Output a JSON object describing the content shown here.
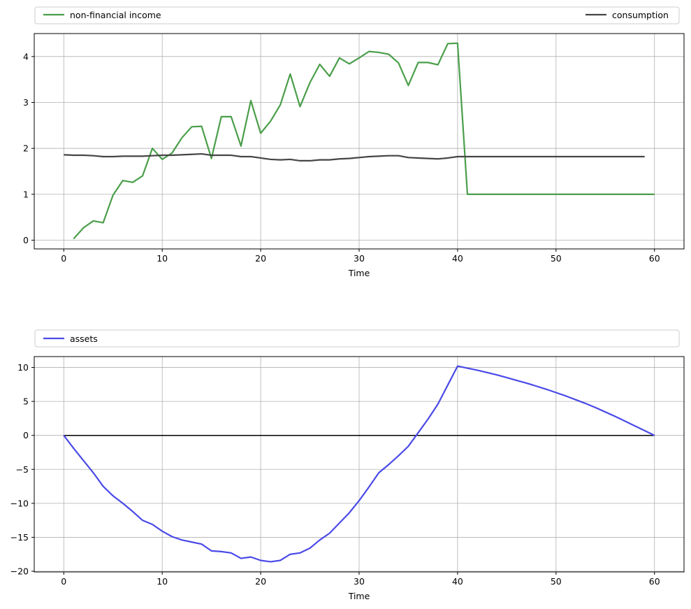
{
  "chart_data": [
    {
      "type": "line",
      "xlabel": "Time",
      "ylabel": "",
      "xlim": [
        -3,
        63
      ],
      "ylim": [
        -0.19,
        4.5
      ],
      "xticks": [
        0,
        10,
        20,
        30,
        40,
        50,
        60
      ],
      "yticks": [
        0,
        1,
        2,
        3,
        4
      ],
      "xtick_labels": [
        "0",
        "10",
        "20",
        "30",
        "40",
        "50",
        "60"
      ],
      "ytick_labels": [
        "0",
        "1",
        "2",
        "3",
        "4"
      ],
      "grid": true,
      "legend_placement": "above, expanded across the top",
      "legend": [
        "non-financial income",
        "consumption"
      ],
      "series": [
        {
          "name": "non-financial income",
          "color": "#4a9e4a",
          "x": [
            1,
            2,
            3,
            4,
            5,
            6,
            7,
            8,
            9,
            10,
            11,
            12,
            13,
            14,
            15,
            16,
            17,
            18,
            19,
            20,
            21,
            22,
            23,
            24,
            25,
            26,
            27,
            28,
            29,
            30,
            31,
            32,
            33,
            34,
            35,
            36,
            37,
            38,
            39,
            40,
            41,
            42,
            43,
            44,
            45,
            46,
            47,
            48,
            49,
            50,
            51,
            52,
            53,
            54,
            55,
            56,
            57,
            58,
            59,
            60
          ],
          "values": [
            0.03,
            0.27,
            0.42,
            0.38,
            0.98,
            1.3,
            1.26,
            1.4,
            2.0,
            1.76,
            1.9,
            2.23,
            2.47,
            2.48,
            1.78,
            2.69,
            2.69,
            2.05,
            3.04,
            2.33,
            2.59,
            2.95,
            3.62,
            2.91,
            3.43,
            3.83,
            3.57,
            3.97,
            3.84,
            3.97,
            4.11,
            4.09,
            4.05,
            3.86,
            3.37,
            3.87,
            3.87,
            3.82,
            4.28,
            4.29,
            1.0,
            1.0,
            1.0,
            1.0,
            1.0,
            1.0,
            1.0,
            1.0,
            1.0,
            1.0,
            1.0,
            1.0,
            1.0,
            1.0,
            1.0,
            1.0,
            1.0,
            1.0,
            1.0,
            1.0
          ]
        },
        {
          "name": "consumption",
          "color": "#454545",
          "x": [
            0,
            1,
            2,
            3,
            4,
            5,
            6,
            7,
            8,
            9,
            10,
            11,
            12,
            13,
            14,
            15,
            16,
            17,
            18,
            19,
            20,
            21,
            22,
            23,
            24,
            25,
            26,
            27,
            28,
            29,
            30,
            31,
            32,
            33,
            34,
            35,
            36,
            37,
            38,
            39,
            40,
            41,
            42,
            43,
            44,
            45,
            46,
            47,
            48,
            49,
            50,
            51,
            52,
            53,
            54,
            55,
            56,
            57,
            58,
            59
          ],
          "values": [
            1.86,
            1.85,
            1.85,
            1.84,
            1.82,
            1.82,
            1.83,
            1.83,
            1.83,
            1.84,
            1.85,
            1.85,
            1.86,
            1.87,
            1.88,
            1.85,
            1.85,
            1.85,
            1.82,
            1.82,
            1.79,
            1.76,
            1.75,
            1.76,
            1.73,
            1.73,
            1.75,
            1.75,
            1.77,
            1.78,
            1.8,
            1.82,
            1.83,
            1.84,
            1.84,
            1.8,
            1.79,
            1.78,
            1.77,
            1.79,
            1.82,
            1.82,
            1.82,
            1.82,
            1.82,
            1.82,
            1.82,
            1.82,
            1.82,
            1.82,
            1.82,
            1.82,
            1.82,
            1.82,
            1.82,
            1.82,
            1.82,
            1.82,
            1.82,
            1.82
          ]
        }
      ]
    },
    {
      "type": "line",
      "xlabel": "Time",
      "ylabel": "",
      "xlim": [
        -3,
        63
      ],
      "ylim": [
        -20.1,
        11.6
      ],
      "xticks": [
        0,
        10,
        20,
        30,
        40,
        50,
        60
      ],
      "yticks": [
        -20,
        -15,
        -10,
        -5,
        0,
        5,
        10
      ],
      "xtick_labels": [
        "0",
        "10",
        "20",
        "30",
        "40",
        "50",
        "60"
      ],
      "ytick_labels": [
        "−20",
        "−15",
        "−10",
        "−5",
        "0",
        "5",
        "10"
      ],
      "grid": true,
      "legend_placement": "above, expanded across the top",
      "legend": [
        "assets"
      ],
      "zero_line": {
        "y": 0,
        "x_from": 0,
        "x_to": 60,
        "color": "#000000"
      },
      "series": [
        {
          "name": "assets",
          "color": "#4a4ae8",
          "x": [
            0,
            1,
            2,
            3,
            4,
            5,
            6,
            7,
            8,
            9,
            10,
            11,
            12,
            13,
            14,
            15,
            16,
            17,
            18,
            19,
            20,
            21,
            22,
            23,
            24,
            25,
            26,
            27,
            28,
            29,
            30,
            31,
            32,
            33,
            34,
            35,
            36,
            37,
            38,
            39,
            40,
            41,
            42,
            43,
            44,
            45,
            46,
            47,
            48,
            49,
            50,
            51,
            52,
            53,
            54,
            55,
            56,
            57,
            58,
            59,
            60
          ],
          "values": [
            0,
            -1.9,
            -3.7,
            -5.5,
            -7.5,
            -8.9,
            -10.0,
            -11.2,
            -12.5,
            -13.1,
            -14.1,
            -14.9,
            -15.4,
            -15.7,
            -16.0,
            -17.0,
            -17.1,
            -17.3,
            -18.1,
            -17.9,
            -18.4,
            -18.6,
            -18.4,
            -17.5,
            -17.3,
            -16.6,
            -15.4,
            -14.4,
            -12.9,
            -11.4,
            -9.6,
            -7.6,
            -5.5,
            -4.3,
            -3.0,
            -1.6,
            0.4,
            2.4,
            4.6,
            7.4,
            10.2,
            9.9,
            9.6,
            9.25,
            8.9,
            8.5,
            8.1,
            7.7,
            7.25,
            6.8,
            6.3,
            5.8,
            5.25,
            4.7,
            4.1,
            3.45,
            2.8,
            2.1,
            1.4,
            0.7,
            0
          ]
        }
      ]
    }
  ]
}
